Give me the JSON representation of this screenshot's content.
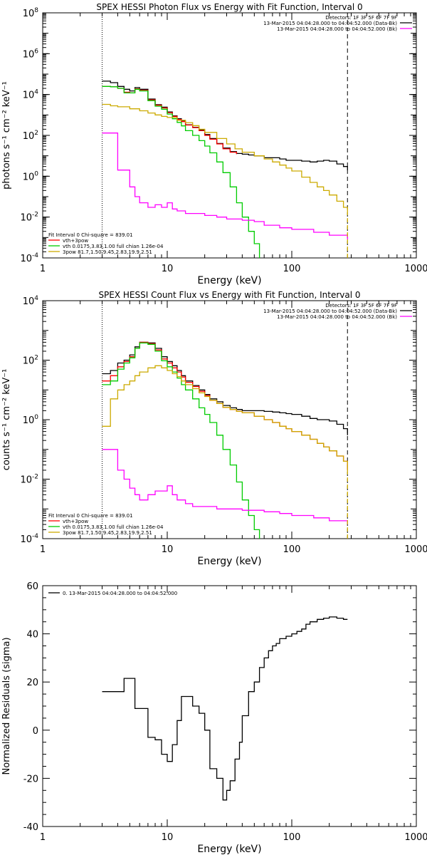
{
  "chart_data": [
    {
      "type": "line",
      "step": true,
      "title": "SPEX HESSI Photon Flux vs Energy with Fit Function, Interval 0",
      "xlabel": "Energy (keV)",
      "ylabel": "photons s⁻¹ cm⁻² keV⁻¹",
      "x_scale": "log",
      "y_scale": "log",
      "xlim": [
        1,
        1000
      ],
      "ylim": [
        0.0001,
        100000000
      ],
      "x_ticks": [
        {
          "v": 1,
          "label": "1"
        },
        {
          "v": 10,
          "label": "10"
        },
        {
          "v": 100,
          "label": "100"
        },
        {
          "v": 1000,
          "label": "1000"
        }
      ],
      "y_ticks": [
        {
          "base": "10",
          "exp": "-4",
          "v": 0.0001
        },
        {
          "base": "10",
          "exp": "-2",
          "v": 0.01
        },
        {
          "base": "10",
          "exp": "0",
          "v": 1
        },
        {
          "base": "10",
          "exp": "2",
          "v": 100
        },
        {
          "base": "10",
          "exp": "4",
          "v": 10000
        },
        {
          "base": "10",
          "exp": "6",
          "v": 1000000
        },
        {
          "base": "10",
          "exp": "8",
          "v": 100000000
        }
      ],
      "vlines": [
        {
          "x": 3,
          "style": "dotted"
        },
        {
          "x": 280,
          "style": "dashed"
        }
      ],
      "legend_top": {
        "position": "top-right",
        "lines": [
          {
            "text": "Detectors: 1F 3F 5F 6F 7F 9F",
            "color": ""
          },
          {
            "text": "13-Mar-2015 04:04:28.000 to 04:04:52.000 (Data-Bk)",
            "color": "#000000"
          },
          {
            "text": "13-Mar-2015 04:04:28.000 to 04:04:52.000 (Bk)",
            "color": "#ff00ff"
          }
        ]
      },
      "legend_bottom": {
        "position": "bottom-left",
        "lines": [
          {
            "text": "Fit Interval 0   Chi-square = 839.01",
            "color": ""
          },
          {
            "text": "vth+3pow",
            "color": "#ff0000"
          },
          {
            "text": "vth 0.0175,3.83,1.00  full chian 1.26e-04",
            "color": "#00cc00"
          },
          {
            "text": "3pow 81.7,1.50,9.45,2.83,19.9,2.51",
            "color": "#ccaa00"
          }
        ]
      },
      "series": [
        {
          "color": "#000000",
          "x": [
            3,
            3.5,
            4,
            4.5,
            5,
            5.5,
            6,
            7,
            8,
            9,
            10,
            11,
            12,
            13,
            14,
            16,
            18,
            20,
            22,
            25,
            28,
            32,
            36,
            40,
            45,
            50,
            60,
            70,
            80,
            90,
            100,
            120,
            140,
            160,
            180,
            200,
            230,
            260,
            280
          ],
          "y": [
            45000,
            38000,
            25000,
            18000,
            15000,
            22000,
            18000,
            6000,
            3200,
            2400,
            1400,
            900,
            650,
            500,
            330,
            250,
            180,
            110,
            70,
            40,
            24,
            16,
            13,
            12,
            11,
            10,
            8,
            8,
            7,
            6,
            6,
            5.5,
            5,
            5.5,
            6,
            5.5,
            4,
            3,
            2
          ]
        },
        {
          "color": "#ff0000",
          "x": [
            3,
            3.5,
            4,
            4.5,
            5,
            5.5,
            6,
            7,
            8,
            9,
            10,
            11,
            12,
            13,
            14,
            16,
            18,
            20,
            22,
            25,
            28,
            32,
            36
          ],
          "y": [
            25000,
            24000,
            20000,
            13000,
            12000,
            19000,
            16000,
            5500,
            3000,
            2200,
            1300,
            850,
            600,
            470,
            320,
            240,
            170,
            100,
            65,
            38,
            22,
            15,
            12
          ]
        },
        {
          "color": "#00cc00",
          "x": [
            3,
            3.5,
            4,
            4.5,
            5,
            5.5,
            6,
            7,
            8,
            9,
            10,
            11,
            12,
            13,
            14,
            16,
            18,
            20,
            22,
            25,
            28,
            32,
            36,
            40,
            45,
            50,
            55
          ],
          "y": [
            25000,
            24000,
            20000,
            12000,
            12000,
            18000,
            15000,
            5000,
            2700,
            1900,
            1100,
            650,
            430,
            290,
            170,
            100,
            55,
            30,
            14,
            5,
            1.5,
            0.3,
            0.05,
            0.01,
            0.002,
            0.0005,
            0.0001
          ]
        },
        {
          "color": "#ccaa00",
          "x": [
            3,
            3.5,
            4,
            5,
            6,
            7,
            8,
            9,
            10,
            12,
            14,
            16,
            18,
            20,
            25,
            30,
            35,
            40,
            50,
            60,
            70,
            80,
            90,
            100,
            120,
            140,
            160,
            180,
            200,
            230,
            260,
            280
          ],
          "y": [
            3300,
            2800,
            2500,
            2000,
            1600,
            1250,
            1000,
            850,
            750,
            550,
            420,
            300,
            200,
            140,
            70,
            38,
            22,
            15,
            10,
            7,
            5,
            3.5,
            2.5,
            1.8,
            0.9,
            0.5,
            0.3,
            0.2,
            0.12,
            0.06,
            0.03,
            0.02
          ]
        },
        {
          "color": "#ff00ff",
          "x": [
            3,
            3.5,
            4,
            4.5,
            5,
            5.5,
            6,
            7,
            8,
            9,
            10,
            11,
            12,
            14,
            16,
            20,
            25,
            30,
            40,
            50,
            60,
            80,
            100,
            150,
            200,
            280
          ],
          "y": [
            130,
            130,
            2,
            2,
            0.3,
            0.1,
            0.05,
            0.03,
            0.04,
            0.03,
            0.05,
            0.025,
            0.02,
            0.015,
            0.015,
            0.012,
            0.01,
            0.008,
            0.007,
            0.006,
            0.004,
            0.003,
            0.0025,
            0.0018,
            0.0013,
            0.0008
          ]
        },
        {
          "color": "#ccaa00",
          "dashed": true,
          "x": [
            280,
            280
          ],
          "y": [
            0.0001,
            0.02
          ]
        }
      ]
    },
    {
      "type": "line",
      "step": true,
      "title": "SPEX HESSI Count Flux vs Energy with Fit Function, Interval 0",
      "xlabel": "Energy (keV)",
      "ylabel": "counts s⁻¹ cm⁻² keV⁻¹",
      "x_scale": "log",
      "y_scale": "log",
      "xlim": [
        1,
        1000
      ],
      "ylim": [
        0.0001,
        10000
      ],
      "x_ticks": [
        {
          "v": 1,
          "label": "1"
        },
        {
          "v": 10,
          "label": "10"
        },
        {
          "v": 100,
          "label": "100"
        },
        {
          "v": 1000,
          "label": "1000"
        }
      ],
      "y_ticks": [
        {
          "base": "10",
          "exp": "-4",
          "v": 0.0001
        },
        {
          "base": "10",
          "exp": "-2",
          "v": 0.01
        },
        {
          "base": "10",
          "exp": "0",
          "v": 1
        },
        {
          "base": "10",
          "exp": "2",
          "v": 100
        },
        {
          "base": "10",
          "exp": "4",
          "v": 10000
        }
      ],
      "vlines": [
        {
          "x": 3,
          "style": "dotted"
        },
        {
          "x": 280,
          "style": "dashed"
        }
      ],
      "legend_top": {
        "position": "top-right",
        "lines": [
          {
            "text": "Detectors: 1F 3F 5F 6F 7F 9F",
            "color": ""
          },
          {
            "text": "13-Mar-2015 04:04:28.000 to 04:04:52.000 (Data-Bk)",
            "color": "#000000"
          },
          {
            "text": "13-Mar-2015 04:04:28.000 to 04:04:52.000 (Bk)",
            "color": "#ff00ff"
          }
        ]
      },
      "legend_bottom": {
        "position": "bottom-left",
        "lines": [
          {
            "text": "Fit Interval 0   Chi-square = 839.01",
            "color": ""
          },
          {
            "text": "vth+3pow",
            "color": "#ff0000"
          },
          {
            "text": "vth 0.0175,3.83,1.00  full chian 1.26e-04",
            "color": "#00cc00"
          },
          {
            "text": "3pow 81.7,1.50,9.45,2.83,19.9,2.51",
            "color": "#ccaa00"
          }
        ]
      },
      "series": [
        {
          "color": "#000000",
          "x": [
            3,
            3.5,
            4,
            4.5,
            5,
            5.5,
            6,
            7,
            8,
            9,
            10,
            11,
            12,
            13,
            14,
            16,
            18,
            20,
            22,
            25,
            28,
            32,
            36,
            40,
            45,
            50,
            60,
            70,
            80,
            90,
            100,
            120,
            140,
            160,
            180,
            200,
            230,
            260,
            280
          ],
          "y": [
            35,
            45,
            80,
            100,
            150,
            280,
            400,
            380,
            250,
            130,
            90,
            65,
            45,
            30,
            20,
            14,
            10,
            7,
            5,
            4,
            3,
            2.5,
            2.2,
            2,
            2,
            2,
            1.9,
            1.8,
            1.7,
            1.6,
            1.5,
            1.3,
            1.1,
            1,
            1,
            0.9,
            0.7,
            0.5,
            0.3
          ]
        },
        {
          "color": "#ff0000",
          "x": [
            3,
            3.5,
            4,
            4.5,
            5,
            5.5,
            6,
            7,
            8,
            9,
            10,
            11,
            12,
            13,
            14,
            16,
            18,
            20,
            22,
            25,
            28,
            32,
            36,
            40,
            50,
            60,
            70,
            80,
            90,
            100,
            120,
            140,
            160,
            180,
            200,
            230,
            260,
            280
          ],
          "y": [
            20,
            30,
            60,
            90,
            130,
            250,
            400,
            360,
            220,
            110,
            80,
            55,
            40,
            27,
            18,
            13,
            9,
            6.5,
            4.5,
            3.5,
            2.6,
            2.2,
            1.9,
            1.7,
            1.3,
            1,
            0.8,
            0.6,
            0.5,
            0.4,
            0.3,
            0.22,
            0.16,
            0.12,
            0.09,
            0.06,
            0.04,
            0.02
          ]
        },
        {
          "color": "#00cc00",
          "x": [
            3,
            3.5,
            4,
            4.5,
            5,
            5.5,
            6,
            7,
            8,
            9,
            10,
            11,
            12,
            13,
            14,
            16,
            18,
            20,
            22,
            25,
            28,
            32,
            36,
            40,
            45,
            50,
            55
          ],
          "y": [
            15,
            20,
            50,
            80,
            120,
            250,
            380,
            340,
            200,
            95,
            60,
            40,
            25,
            15,
            10,
            5,
            2.5,
            1.5,
            0.8,
            0.3,
            0.1,
            0.03,
            0.008,
            0.002,
            0.0006,
            0.0002,
            0.0001
          ]
        },
        {
          "color": "#ccaa00",
          "x": [
            3,
            3.5,
            4,
            4.5,
            5,
            5.5,
            6,
            7,
            8,
            9,
            10,
            11,
            12,
            13,
            14,
            16,
            18,
            20,
            22,
            25,
            28,
            32,
            36,
            40,
            50,
            60,
            70,
            80,
            90,
            100,
            120,
            140,
            160,
            180,
            200,
            230,
            260,
            280
          ],
          "y": [
            0.6,
            5,
            10,
            15,
            20,
            30,
            40,
            55,
            65,
            55,
            45,
            35,
            28,
            20,
            15,
            11,
            8,
            6,
            4.5,
            3.5,
            2.6,
            2.2,
            1.9,
            1.7,
            1.3,
            1,
            0.8,
            0.6,
            0.5,
            0.4,
            0.3,
            0.22,
            0.16,
            0.12,
            0.09,
            0.06,
            0.04,
            0.02
          ]
        },
        {
          "color": "#ff00ff",
          "x": [
            3,
            3.5,
            4,
            4.5,
            5,
            5.5,
            6,
            7,
            8,
            9,
            10,
            11,
            12,
            14,
            16,
            20,
            25,
            30,
            40,
            50,
            60,
            80,
            100,
            150,
            200,
            280
          ],
          "y": [
            0.1,
            0.1,
            0.02,
            0.01,
            0.005,
            0.003,
            0.002,
            0.003,
            0.004,
            0.004,
            0.006,
            0.003,
            0.002,
            0.0015,
            0.0012,
            0.0012,
            0.001,
            0.001,
            0.0009,
            0.0009,
            0.0008,
            0.0007,
            0.0006,
            0.0005,
            0.0004,
            0.0003
          ]
        },
        {
          "color": "#ccaa00",
          "dashed": true,
          "x": [
            280,
            280
          ],
          "y": [
            0.0001,
            0.02
          ]
        }
      ]
    },
    {
      "type": "line",
      "step": true,
      "title": "",
      "xlabel": "Energy (keV)",
      "ylabel": "Normalized Residuals (sigma)",
      "x_scale": "log",
      "y_scale": "linear",
      "xlim": [
        1,
        1000
      ],
      "ylim": [
        -40,
        60
      ],
      "x_ticks": [
        {
          "v": 1,
          "label": "1"
        },
        {
          "v": 10,
          "label": "10"
        },
        {
          "v": 100,
          "label": "100"
        },
        {
          "v": 1000,
          "label": "1000"
        }
      ],
      "y_ticks": [
        {
          "v": -40,
          "label": "-40"
        },
        {
          "v": -20,
          "label": "-20"
        },
        {
          "v": 0,
          "label": "0"
        },
        {
          "v": 20,
          "label": "20"
        },
        {
          "v": 40,
          "label": "40"
        },
        {
          "v": 60,
          "label": "60"
        }
      ],
      "legend_top": {
        "position": "top-left",
        "lines": [
          {
            "text": "0. 13-Mar-2015 04:04:28.000 to 04:04:52.000",
            "color": "#000000"
          }
        ]
      },
      "series": [
        {
          "color": "#000000",
          "x": [
            3,
            4,
            4.5,
            5,
            5.5,
            6,
            7,
            8,
            9,
            10,
            11,
            12,
            13,
            14,
            16,
            18,
            20,
            22,
            25,
            28,
            30,
            32,
            35,
            38,
            40,
            45,
            50,
            55,
            60,
            65,
            70,
            75,
            80,
            90,
            100,
            110,
            120,
            130,
            140,
            160,
            180,
            200,
            230,
            260,
            280
          ],
          "y": [
            16,
            16,
            21.5,
            21.5,
            9,
            9,
            -3,
            -4,
            -10,
            -13,
            -6,
            4,
            14,
            14,
            10,
            7,
            0,
            -16,
            -20,
            -29,
            -25,
            -21,
            -12,
            -5,
            6,
            16,
            20,
            26,
            30,
            33,
            35,
            36,
            38,
            39,
            40,
            41,
            42,
            44,
            45,
            46,
            46.5,
            47,
            46.5,
            46,
            46
          ]
        }
      ]
    }
  ]
}
